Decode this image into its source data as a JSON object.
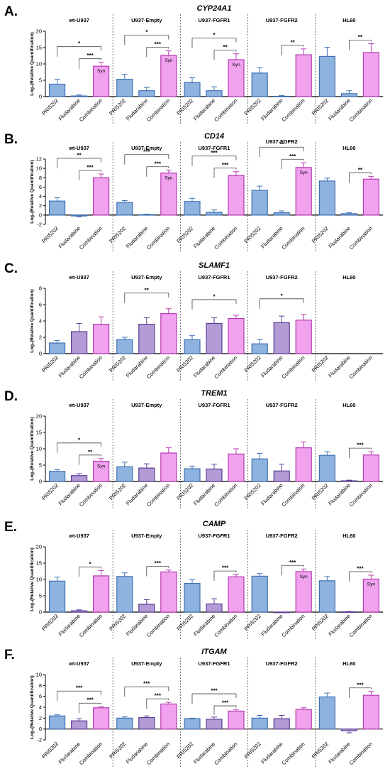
{
  "figure": {
    "y_label": "Log₂(Relative Quantification)",
    "categories": [
      "PRI5202",
      "Fludarabine",
      "Combination"
    ],
    "groups": [
      "wt-U937",
      "U937-Empty",
      "U937-FGFR1",
      "U937-FGFR2",
      "HL60"
    ],
    "colors": {
      "PRI5202": {
        "fill": "#8fb3df",
        "stroke": "#3f71b3"
      },
      "Fludarabine": {
        "fill": "#b39bd6",
        "stroke": "#5d3f95"
      },
      "Combination": {
        "fill": "#f0a2ef",
        "stroke": "#b53bb0"
      }
    },
    "syn_text": "Syn"
  },
  "chart_data": [
    {
      "type": "bar",
      "letter": "A.",
      "title": "CYP24A1",
      "ylim": [
        0,
        20
      ],
      "yticks": [
        0,
        5,
        10,
        15,
        20
      ],
      "fludarabine_color": "PRI5202",
      "series_by_group": [
        {
          "group": "wt-U937",
          "values": [
            3.8,
            0.2,
            9.3
          ],
          "errors": [
            1.5,
            0.3,
            1.2
          ],
          "syn": true,
          "sig": [
            {
              "from": 0,
              "to": 2,
              "label": "*"
            },
            {
              "from": 1,
              "to": 2,
              "label": "***"
            }
          ]
        },
        {
          "group": "U937-Empty",
          "values": [
            5.3,
            1.8,
            12.6
          ],
          "errors": [
            1.5,
            1.0,
            1.4
          ],
          "syn": true,
          "sig": [
            {
              "from": 0,
              "to": 2,
              "label": "*"
            },
            {
              "from": 1,
              "to": 2,
              "label": "***"
            }
          ]
        },
        {
          "group": "U937-FGFR1",
          "values": [
            4.3,
            1.8,
            11.3
          ],
          "errors": [
            1.5,
            1.2,
            1.8
          ],
          "syn": true,
          "sig": [
            {
              "from": 0,
              "to": 2,
              "label": "*"
            },
            {
              "from": 1,
              "to": 2,
              "label": "**"
            }
          ]
        },
        {
          "group": "U937-FGFR2",
          "values": [
            7.2,
            0.1,
            12.8
          ],
          "errors": [
            1.6,
            0.2,
            1.8
          ],
          "syn": false,
          "sig": [
            {
              "from": 1,
              "to": 2,
              "label": "**"
            }
          ]
        },
        {
          "group": "HL60",
          "values": [
            12.3,
            0.9,
            13.5
          ],
          "errors": [
            2.8,
            0.9,
            2.7
          ],
          "syn": false,
          "sig": [
            {
              "from": 1,
              "to": 2,
              "label": "**"
            }
          ]
        }
      ]
    },
    {
      "type": "bar",
      "letter": "B.",
      "title": "CD14",
      "ylim": [
        -2,
        12
      ],
      "yticks": [
        -2,
        0,
        2,
        4,
        6,
        8,
        10,
        12
      ],
      "fludarabine_color": "PRI5202",
      "series_by_group": [
        {
          "group": "wt-U937",
          "values": [
            3.0,
            -0.2,
            8.0
          ],
          "errors": [
            0.7,
            0.2,
            0.8
          ],
          "syn": false,
          "sig": [
            {
              "from": 0,
              "to": 2,
              "label": "**"
            },
            {
              "from": 1,
              "to": 2,
              "label": "***"
            }
          ]
        },
        {
          "group": "U937-Empty",
          "values": [
            2.7,
            0.1,
            9.0
          ],
          "errors": [
            0.4,
            0.1,
            0.6
          ],
          "syn": true,
          "sig": [
            {
              "from": 0,
              "to": 2,
              "label": "***"
            },
            {
              "from": 1,
              "to": 2,
              "label": "***"
            }
          ]
        },
        {
          "group": "U937-FGFR1",
          "values": [
            2.9,
            0.6,
            8.5
          ],
          "errors": [
            0.7,
            0.5,
            0.8
          ],
          "syn": false,
          "sig": [
            {
              "from": 0,
              "to": 2,
              "label": "***"
            },
            {
              "from": 1,
              "to": 2,
              "label": "***"
            }
          ]
        },
        {
          "group": "U937-FGFR2",
          "values": [
            5.3,
            0.5,
            10.2
          ],
          "errors": [
            0.9,
            0.4,
            1.0
          ],
          "syn": true,
          "sig": [
            {
              "from": 0,
              "to": 2,
              "label": "**"
            },
            {
              "from": 1,
              "to": 2,
              "label": "***"
            }
          ]
        },
        {
          "group": "HL60",
          "values": [
            7.3,
            0.3,
            7.7
          ],
          "errors": [
            0.6,
            0.2,
            0.6
          ],
          "syn": false,
          "sig": [
            {
              "from": 1,
              "to": 2,
              "label": "**"
            }
          ]
        }
      ]
    },
    {
      "type": "bar",
      "letter": "C.",
      "title": "SLAMF1",
      "ylim": [
        0,
        8
      ],
      "yticks": [
        0,
        2,
        4,
        6,
        8
      ],
      "fludarabine_color": "Fludarabine",
      "series_by_group": [
        {
          "group": "wt-U937",
          "values": [
            1.3,
            2.7,
            3.6
          ],
          "errors": [
            0.3,
            1.0,
            0.9
          ],
          "syn": false,
          "sig": []
        },
        {
          "group": "U937-Empty",
          "values": [
            1.7,
            3.6,
            4.9
          ],
          "errors": [
            0.3,
            0.8,
            0.6
          ],
          "syn": false,
          "sig": [
            {
              "from": 0,
              "to": 2,
              "label": "**"
            }
          ]
        },
        {
          "group": "U937-FGFR1",
          "values": [
            1.7,
            3.7,
            4.3
          ],
          "errors": [
            0.5,
            0.7,
            0.4
          ],
          "syn": false,
          "sig": [
            {
              "from": 0,
              "to": 2,
              "label": "*"
            }
          ]
        },
        {
          "group": "U937-FGFR2",
          "values": [
            1.2,
            3.8,
            4.1
          ],
          "errors": [
            0.5,
            0.8,
            0.7
          ],
          "syn": false,
          "sig": [
            {
              "from": 0,
              "to": 2,
              "label": "*"
            }
          ]
        },
        {
          "group": "HL60",
          "values": [
            null,
            null,
            null
          ],
          "errors": [
            null,
            null,
            null
          ],
          "syn": false,
          "sig": []
        }
      ]
    },
    {
      "type": "bar",
      "letter": "D.",
      "title": "TREM1",
      "ylim": [
        0,
        20
      ],
      "yticks": [
        0,
        5,
        10,
        15,
        20
      ],
      "fludarabine_color": "Fludarabine",
      "series_by_group": [
        {
          "group": "wt-U937",
          "values": [
            3.1,
            1.8,
            6.2
          ],
          "errors": [
            0.5,
            0.6,
            0.8
          ],
          "syn": true,
          "sig": [
            {
              "from": 0,
              "to": 2,
              "label": "*"
            },
            {
              "from": 1,
              "to": 2,
              "label": "**"
            }
          ]
        },
        {
          "group": "U937-Empty",
          "values": [
            4.5,
            4.1,
            8.7
          ],
          "errors": [
            1.4,
            1.3,
            1.6
          ],
          "syn": false,
          "sig": []
        },
        {
          "group": "U937-FGFR1",
          "values": [
            3.9,
            3.8,
            8.4
          ],
          "errors": [
            0.8,
            1.5,
            1.6
          ],
          "syn": false,
          "sig": []
        },
        {
          "group": "U937-FGFR2",
          "values": [
            6.9,
            3.2,
            10.3
          ],
          "errors": [
            1.7,
            2.1,
            1.8
          ],
          "syn": false,
          "sig": []
        },
        {
          "group": "HL60",
          "values": [
            8.0,
            0.2,
            8.1
          ],
          "errors": [
            1.1,
            0.2,
            1.0
          ],
          "syn": false,
          "sig": [
            {
              "from": 1,
              "to": 2,
              "label": "***"
            }
          ]
        }
      ]
    },
    {
      "type": "bar",
      "letter": "E.",
      "title": "CAMP",
      "ylim": [
        0,
        20
      ],
      "yticks": [
        0,
        5,
        10,
        15,
        20
      ],
      "fludarabine_color": "Fludarabine",
      "series_by_group": [
        {
          "group": "wt-U937",
          "values": [
            9.5,
            0.4,
            11.1
          ],
          "errors": [
            1.2,
            0.3,
            1.6
          ],
          "syn": false,
          "sig": [
            {
              "from": 1,
              "to": 2,
              "label": "*"
            }
          ]
        },
        {
          "group": "U937-Empty",
          "values": [
            10.9,
            2.4,
            12.3
          ],
          "errors": [
            1.1,
            1.4,
            0.6
          ],
          "syn": false,
          "sig": [
            {
              "from": 1,
              "to": 2,
              "label": "***"
            }
          ]
        },
        {
          "group": "U937-FGFR1",
          "values": [
            8.8,
            2.5,
            10.8
          ],
          "errors": [
            1.1,
            1.6,
            0.7
          ],
          "syn": false,
          "sig": [
            {
              "from": 1,
              "to": 2,
              "label": "***"
            }
          ]
        },
        {
          "group": "U937-FGFR2",
          "values": [
            11.0,
            0.0,
            12.4
          ],
          "errors": [
            0.8,
            0.0,
            0.8
          ],
          "syn": true,
          "sig": [
            {
              "from": 1,
              "to": 2,
              "label": "***"
            }
          ]
        },
        {
          "group": "HL60",
          "values": [
            9.6,
            0.1,
            10.1
          ],
          "errors": [
            1.3,
            0.1,
            1.2
          ],
          "syn": true,
          "sig": [
            {
              "from": 1,
              "to": 2,
              "label": "***"
            }
          ]
        }
      ]
    },
    {
      "type": "bar",
      "letter": "F.",
      "title": "ITGAM",
      "ylim": [
        -2,
        10
      ],
      "yticks": [
        -2,
        0,
        2,
        4,
        6,
        8,
        10
      ],
      "fludarabine_color": "Fludarabine",
      "series_by_group": [
        {
          "group": "wt-U937",
          "values": [
            2.4,
            1.5,
            3.9
          ],
          "errors": [
            0.2,
            0.4,
            0.2
          ],
          "syn": false,
          "sig": [
            {
              "from": 0,
              "to": 2,
              "label": "***"
            },
            {
              "from": 1,
              "to": 2,
              "label": "***"
            }
          ]
        },
        {
          "group": "U937-Empty",
          "values": [
            2.0,
            2.1,
            4.6
          ],
          "errors": [
            0.3,
            0.3,
            0.3
          ],
          "syn": false,
          "sig": [
            {
              "from": 0,
              "to": 2,
              "label": "***"
            },
            {
              "from": 1,
              "to": 2,
              "label": "***"
            }
          ]
        },
        {
          "group": "U937-FGFR1",
          "values": [
            1.9,
            1.8,
            3.3
          ],
          "errors": [
            0.1,
            0.4,
            0.3
          ],
          "syn": false,
          "sig": [
            {
              "from": 0,
              "to": 2,
              "label": "***"
            },
            {
              "from": 1,
              "to": 2,
              "label": "***"
            }
          ]
        },
        {
          "group": "U937-FGFR2",
          "values": [
            2.0,
            1.9,
            3.6
          ],
          "errors": [
            0.5,
            0.6,
            0.3
          ],
          "syn": false,
          "sig": []
        },
        {
          "group": "HL60",
          "values": [
            5.9,
            -0.3,
            6.2
          ],
          "errors": [
            0.7,
            0.4,
            0.7
          ],
          "syn": false,
          "sig": [
            {
              "from": 1,
              "to": 2,
              "label": "***"
            }
          ]
        }
      ]
    }
  ]
}
